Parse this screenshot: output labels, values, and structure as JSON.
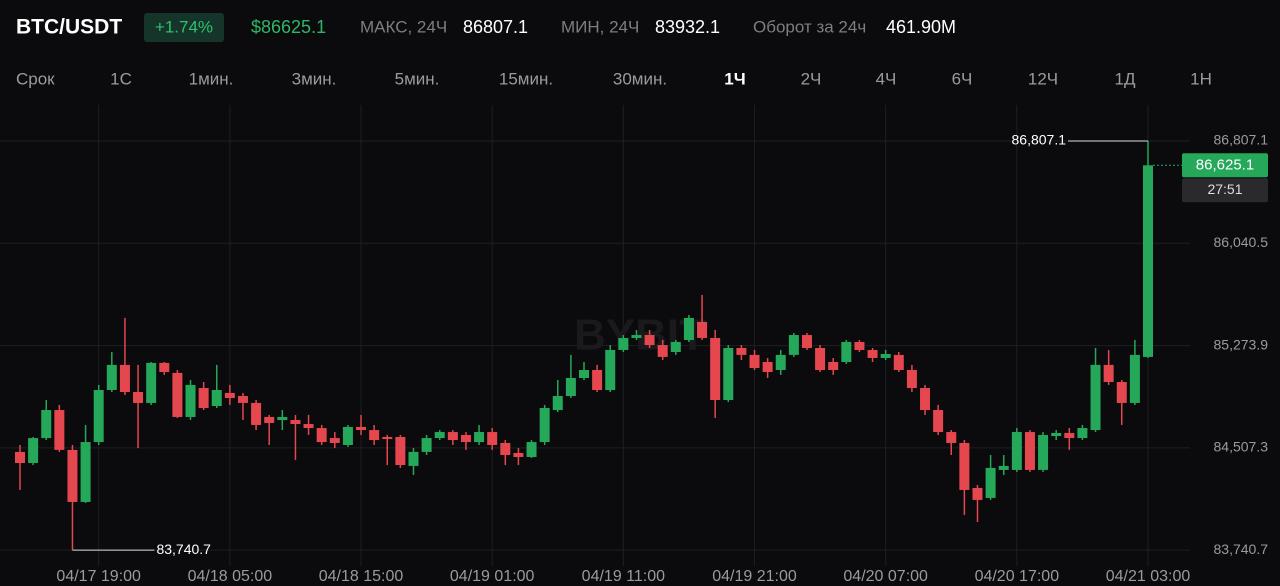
{
  "header": {
    "pair": "BTC/USDT",
    "change": "+1.74%",
    "price": "$86625.1",
    "high_label": "МАКС, 24Ч",
    "high": "86807.1",
    "low_label": "МИН, 24Ч",
    "low": "83932.1",
    "turnover_label": "Оборот за 24ч",
    "turnover": "461.90M"
  },
  "timeframes": {
    "label": "Срок",
    "items": [
      "1С",
      "1мин.",
      "3мин.",
      "5мин.",
      "15мин.",
      "30мин.",
      "1Ч",
      "2Ч",
      "4Ч",
      "6Ч",
      "12Ч",
      "1Д",
      "1Н"
    ],
    "active_index": 6
  },
  "chart_data": {
    "type": "candlestick",
    "watermark": "BYBIT",
    "up_color": "#26a85a",
    "down_color": "#e5474e",
    "grid": true,
    "categories": [
      null,
      null,
      null,
      null,
      null,
      null,
      "04/17 19:00",
      null,
      null,
      null,
      null,
      null,
      null,
      null,
      null,
      null,
      "04/18 05:00",
      null,
      null,
      null,
      null,
      null,
      null,
      null,
      null,
      null,
      "04/18 15:00",
      null,
      null,
      null,
      null,
      null,
      null,
      null,
      null,
      null,
      "04/19 01:00",
      null,
      null,
      null,
      null,
      null,
      null,
      null,
      null,
      null,
      "04/19 11:00",
      null,
      null,
      null,
      null,
      null,
      null,
      null,
      null,
      null,
      "04/19 21:00",
      null,
      null,
      null,
      null,
      null,
      null,
      null,
      null,
      null,
      "04/20 07:00",
      null,
      null,
      null,
      null,
      null,
      null,
      null,
      null,
      null,
      "04/20 17:00",
      null,
      null,
      null,
      null,
      null,
      null,
      null,
      null,
      null,
      "04/21 03:00"
    ],
    "open": [
      84477,
      84394,
      84581,
      84791,
      84492,
      84102,
      84551,
      84941,
      85129,
      84926,
      84844,
      85144,
      85069,
      84739,
      84956,
      84821,
      84919,
      84896,
      84844,
      84739,
      84716,
      84716,
      84686,
      84656,
      84581,
      84529,
      84664,
      84641,
      84589,
      84589,
      84372,
      84477,
      84581,
      84626,
      84604,
      84551,
      84626,
      84544,
      84469,
      84439,
      84551,
      84791,
      84896,
      85031,
      85091,
      84941,
      85241,
      85331,
      85353,
      85278,
      85226,
      85316,
      85451,
      85331,
      84866,
      85256,
      85204,
      85151,
      85091,
      85204,
      85353,
      85256,
      85151,
      85151,
      85301,
      85241,
      85181,
      85204,
      85091,
      84956,
      84791,
      84626,
      84544,
      84207,
      84132,
      84342,
      84342,
      84626,
      84342,
      84596,
      84619,
      84581,
      84641,
      85129,
      85001,
      84844,
      85189
    ],
    "high": [
      84529,
      84589,
      84866,
      84829,
      84529,
      84679,
      84979,
      85226,
      85481,
      85129,
      85151,
      85151,
      85091,
      85016,
      85001,
      85129,
      84979,
      84919,
      84866,
      84754,
      84791,
      84754,
      84754,
      84679,
      84626,
      84679,
      84754,
      84679,
      84604,
      84604,
      84506,
      84604,
      84641,
      84641,
      84626,
      84679,
      84656,
      84566,
      84506,
      84566,
      84829,
      85016,
      85204,
      85151,
      85129,
      85278,
      85353,
      85391,
      85391,
      85316,
      85316,
      85503,
      85653,
      85391,
      85278,
      85278,
      85241,
      85181,
      85241,
      85368,
      85368,
      85278,
      85181,
      85316,
      85316,
      85256,
      85241,
      85226,
      85129,
      84979,
      84829,
      84641,
      84566,
      84229,
      84454,
      84454,
      84656,
      84641,
      84626,
      84641,
      84656,
      84679,
      85256,
      85241,
      85016,
      85316,
      86807.1
    ],
    "low": [
      84192,
      84379,
      84566,
      84477,
      83740.7,
      84094,
      84529,
      84926,
      84904,
      84506,
      84829,
      85054,
      84731,
      84716,
      84791,
      84806,
      84829,
      84716,
      84641,
      84529,
      84641,
      84417,
      84604,
      84529,
      84506,
      84514,
      84604,
      84529,
      84379,
      84357,
      84304,
      84454,
      84566,
      84529,
      84492,
      84529,
      84492,
      84379,
      84379,
      84431,
      84529,
      84776,
      84881,
      85016,
      84926,
      84926,
      85226,
      85316,
      85256,
      85166,
      85204,
      85301,
      85316,
      84731,
      84851,
      85166,
      85091,
      85031,
      85054,
      85189,
      85241,
      85076,
      85054,
      85136,
      85226,
      85151,
      85166,
      85076,
      84926,
      84754,
      84604,
      84454,
      84004,
      83952,
      84117,
      84304,
      84327,
      84327,
      84327,
      84566,
      84492,
      84566,
      84626,
      84979,
      84679,
      84829,
      85181
    ],
    "close": [
      84394,
      84581,
      84791,
      84492,
      84102,
      84551,
      84941,
      85129,
      84926,
      84844,
      85144,
      85076,
      84739,
      84979,
      84806,
      84941,
      84881,
      84844,
      84679,
      84694,
      84739,
      84686,
      84656,
      84551,
      84544,
      84664,
      84641,
      84566,
      84574,
      84379,
      84477,
      84581,
      84626,
      84566,
      84551,
      84626,
      84529,
      84454,
      84439,
      84551,
      84806,
      84896,
      85031,
      85091,
      84941,
      85241,
      85331,
      85353,
      85278,
      85189,
      85301,
      85481,
      85331,
      84866,
      85256,
      85204,
      85106,
      85076,
      85204,
      85353,
      85256,
      85091,
      85091,
      85301,
      85241,
      85181,
      85211,
      85091,
      84956,
      84791,
      84626,
      84544,
      84192,
      84117,
      84357,
      84372,
      84626,
      84342,
      84604,
      84619,
      84581,
      84656,
      85129,
      85001,
      84844,
      85204,
      86625.1
    ],
    "ylim": [
      83667,
      87077
    ],
    "yticks": [
      {
        "value": 83740.7,
        "label": "83,740.7"
      },
      {
        "value": 84507.3,
        "label": "84,507.3"
      },
      {
        "value": 85273.9,
        "label": "85,273.9"
      },
      {
        "value": 86040.5,
        "label": "86,040.5"
      },
      {
        "value": 86807.1,
        "label": "86,807.1"
      }
    ],
    "high_marker": {
      "value": 86807.1,
      "label": "86,807.1"
    },
    "low_marker": {
      "value": 83740.7,
      "label": "83,740.7"
    },
    "last_price": {
      "value": 86625.1,
      "label": "86,625.1"
    },
    "countdown": "27:51"
  }
}
